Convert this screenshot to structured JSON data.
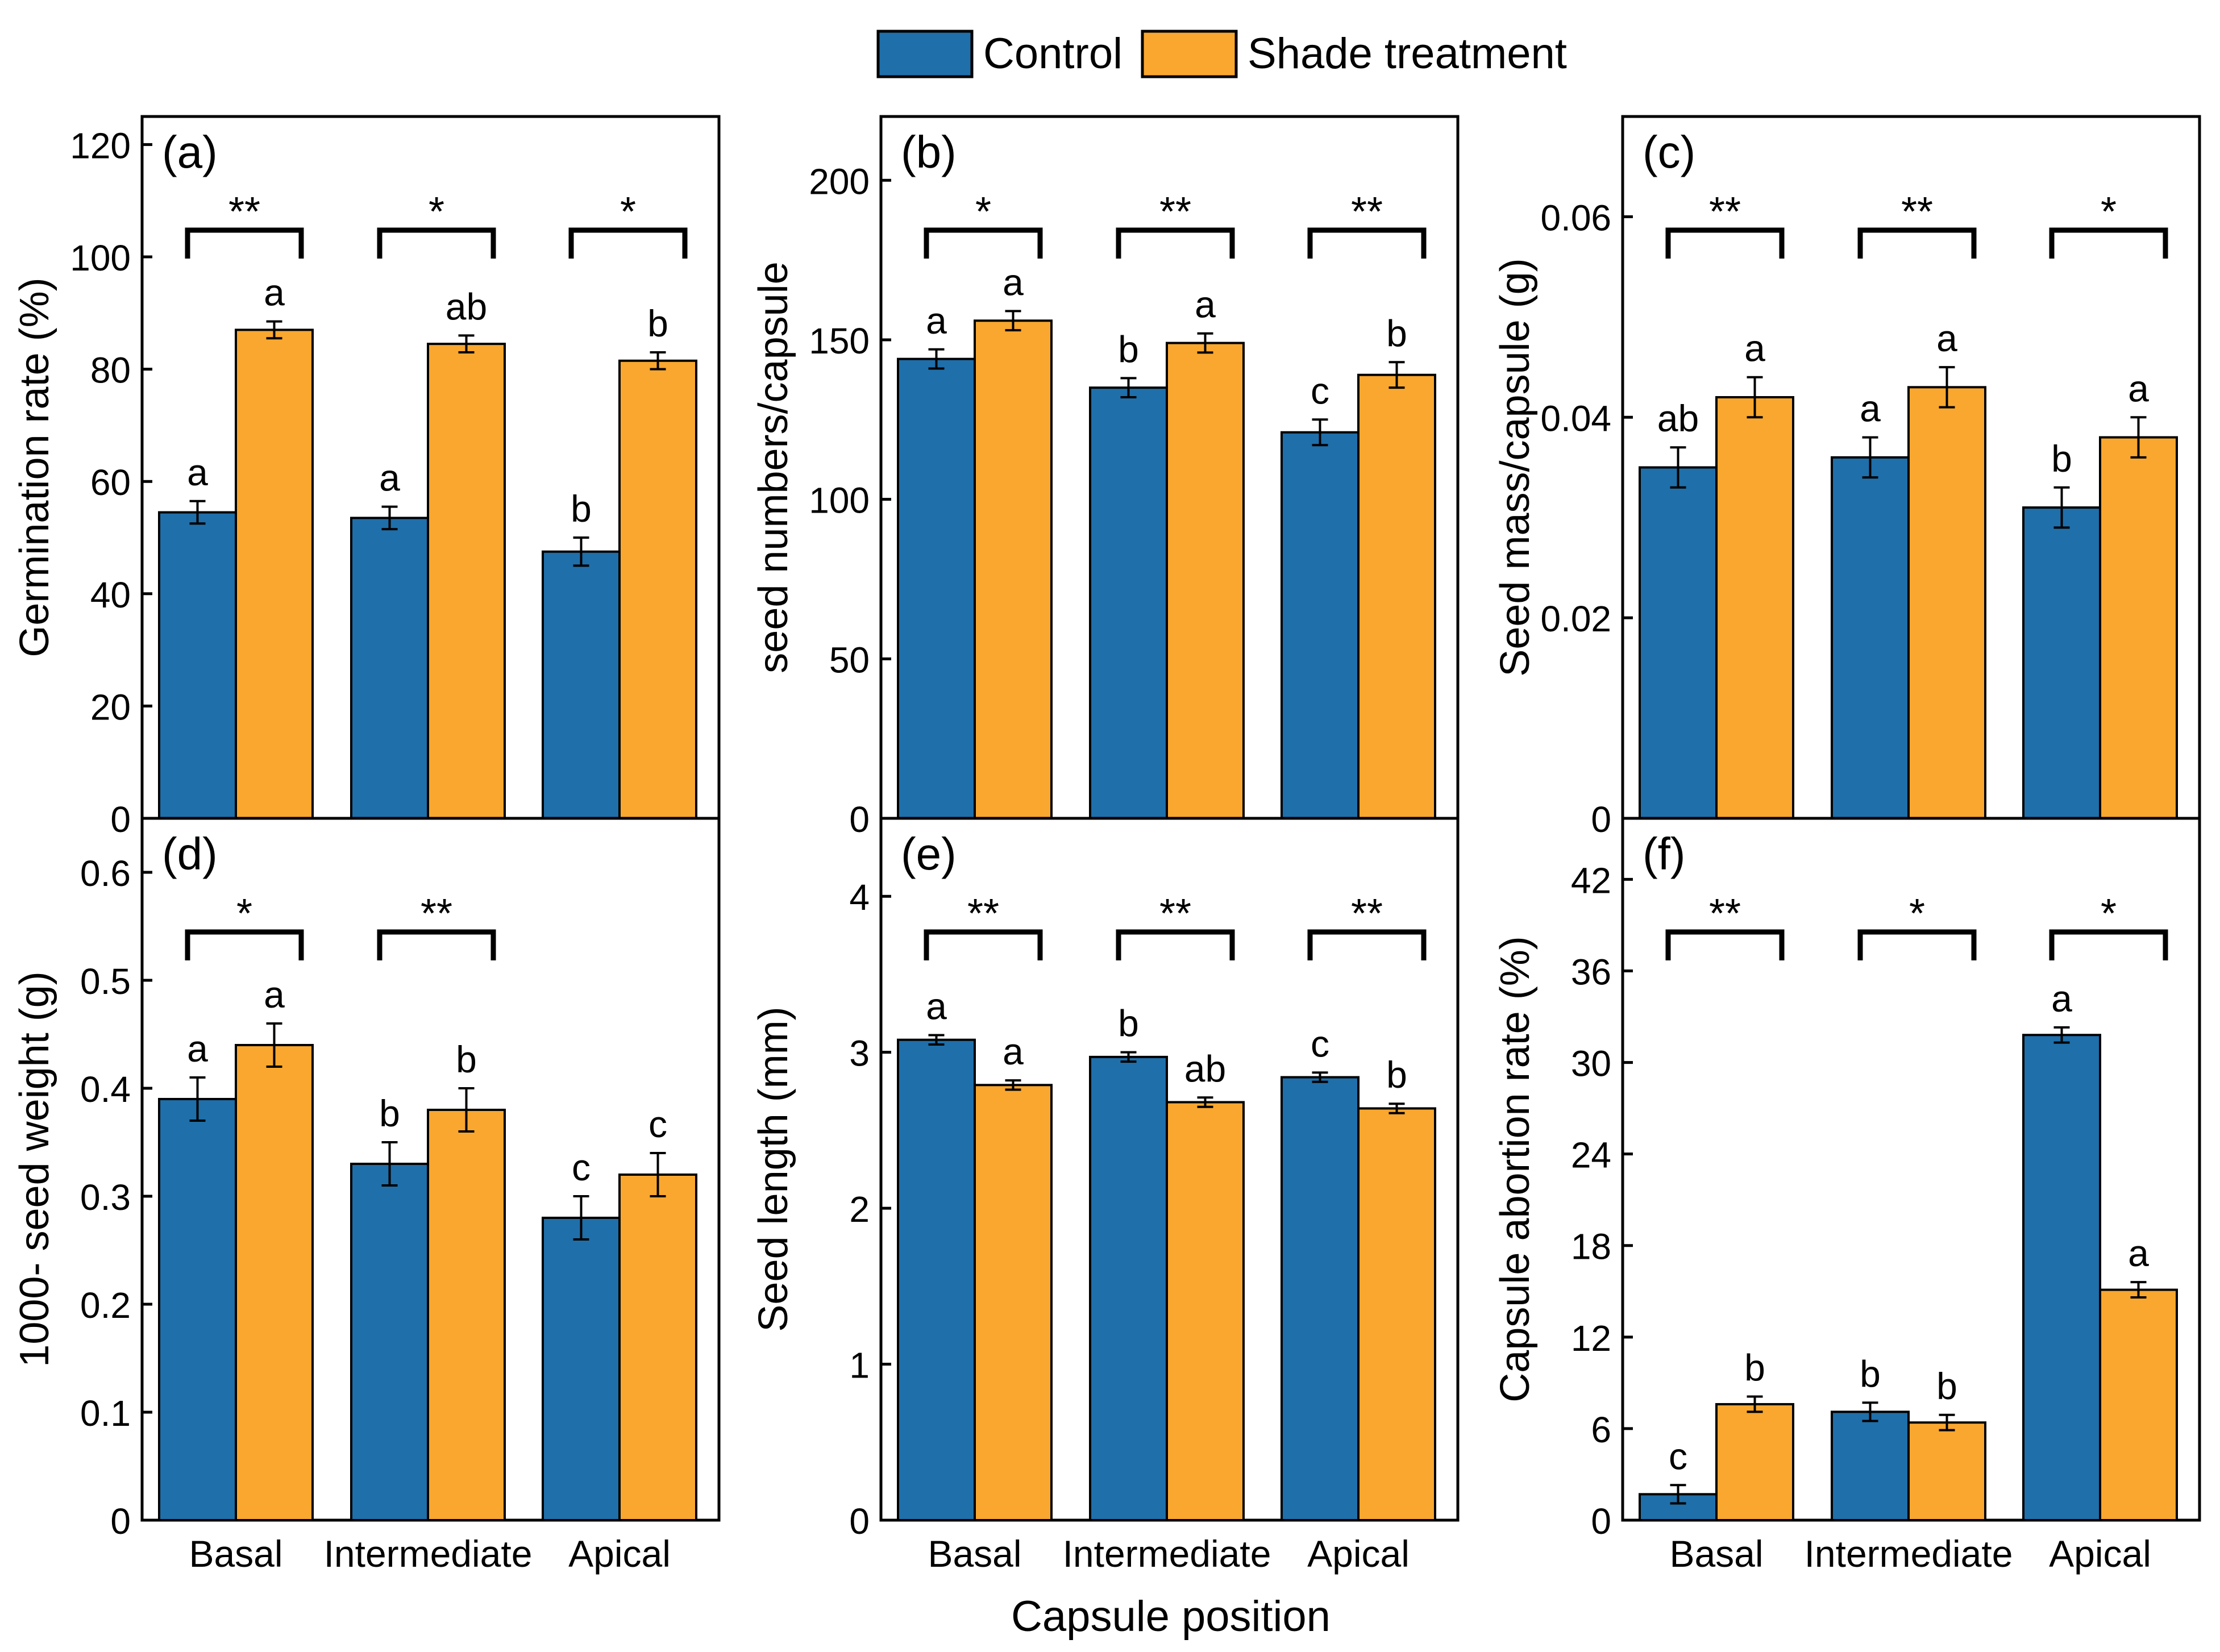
{
  "legend": {
    "entries": [
      {
        "name": "Control",
        "color": "#1f6faa"
      },
      {
        "name": "Shade treatment",
        "color": "#f9a72f"
      }
    ]
  },
  "xaxis_title": "Capsule position",
  "chart_data": [
    {
      "panel": "(a)",
      "type": "bar",
      "categories": [
        "Basal",
        "Intermediate",
        "Apical"
      ],
      "ylabel": "Germination rate (%)",
      "ylim": [
        0,
        125
      ],
      "yticks": [
        0,
        20,
        40,
        60,
        80,
        100,
        120
      ],
      "series": [
        {
          "name": "Control",
          "values": [
            54.5,
            53.5,
            47.5
          ],
          "errors": [
            2,
            2,
            2.5
          ],
          "letters": [
            "a",
            "a",
            "b"
          ]
        },
        {
          "name": "Shade treatment",
          "values": [
            87,
            84.5,
            81.5
          ],
          "errors": [
            1.5,
            1.5,
            1.5
          ],
          "letters": [
            "a",
            "ab",
            "b"
          ]
        }
      ],
      "significance": [
        "**",
        "*",
        "*"
      ]
    },
    {
      "panel": "(b)",
      "type": "bar",
      "categories": [
        "Basal",
        "Intermediate",
        "Apical"
      ],
      "ylabel": "seed numbers/capsule",
      "ylim": [
        0,
        220
      ],
      "yticks": [
        0,
        50,
        100,
        150,
        200
      ],
      "series": [
        {
          "name": "Control",
          "values": [
            144,
            135,
            121
          ],
          "errors": [
            3,
            3,
            4
          ],
          "letters": [
            "a",
            "b",
            "c"
          ]
        },
        {
          "name": "Shade treatment",
          "values": [
            156,
            149,
            139
          ],
          "errors": [
            3,
            3,
            4
          ],
          "letters": [
            "a",
            "a",
            "b"
          ]
        }
      ],
      "significance": [
        "*",
        "**",
        "**"
      ]
    },
    {
      "panel": "(c)",
      "type": "bar",
      "categories": [
        "Basal",
        "Intermediate",
        "Apical"
      ],
      "ylabel": "Seed mass/capsule (g)",
      "ylim": [
        0,
        0.07
      ],
      "yticks": [
        0,
        0.02,
        0.04,
        0.06
      ],
      "series": [
        {
          "name": "Control",
          "values": [
            0.035,
            0.036,
            0.031
          ],
          "errors": [
            0.002,
            0.002,
            0.002
          ],
          "letters": [
            "ab",
            "a",
            "b"
          ]
        },
        {
          "name": "Shade treatment",
          "values": [
            0.042,
            0.043,
            0.038
          ],
          "errors": [
            0.002,
            0.002,
            0.002
          ],
          "letters": [
            "a",
            "a",
            "a"
          ]
        }
      ],
      "significance": [
        "**",
        "**",
        "*"
      ]
    },
    {
      "panel": "(d)",
      "type": "bar",
      "categories": [
        "Basal",
        "Intermediate",
        "Apical"
      ],
      "ylabel": "1000- seed weight (g)",
      "ylim": [
        0,
        0.65
      ],
      "yticks": [
        0,
        0.1,
        0.2,
        0.3,
        0.4,
        0.5,
        0.6
      ],
      "series": [
        {
          "name": "Control",
          "values": [
            0.39,
            0.33,
            0.28
          ],
          "errors": [
            0.02,
            0.02,
            0.02
          ],
          "letters": [
            "a",
            "b",
            "c"
          ]
        },
        {
          "name": "Shade treatment",
          "values": [
            0.44,
            0.38,
            0.32
          ],
          "errors": [
            0.02,
            0.02,
            0.02
          ],
          "letters": [
            "a",
            "b",
            "c"
          ]
        }
      ],
      "significance": [
        "*",
        "**",
        ""
      ]
    },
    {
      "panel": "(e)",
      "type": "bar",
      "categories": [
        "Basal",
        "Intermediate",
        "Apical"
      ],
      "ylabel": "Seed length (mm)",
      "ylim": [
        0,
        4.5
      ],
      "yticks": [
        0,
        1,
        2,
        3,
        4
      ],
      "series": [
        {
          "name": "Control",
          "values": [
            3.08,
            2.97,
            2.84
          ],
          "errors": [
            0.03,
            0.03,
            0.03
          ],
          "letters": [
            "a",
            "b",
            "c"
          ]
        },
        {
          "name": "Shade treatment",
          "values": [
            2.79,
            2.68,
            2.64
          ],
          "errors": [
            0.03,
            0.03,
            0.03
          ],
          "letters": [
            "a",
            "ab",
            "b"
          ]
        }
      ],
      "significance": [
        "**",
        "**",
        "**"
      ]
    },
    {
      "panel": "(f)",
      "type": "bar",
      "categories": [
        "Basal",
        "Intermediate",
        "Apical"
      ],
      "ylabel": "Capsule abortion rate (%)",
      "ylim": [
        0,
        46
      ],
      "yticks": [
        0,
        6,
        12,
        18,
        24,
        30,
        36,
        42
      ],
      "series": [
        {
          "name": "Control",
          "values": [
            1.7,
            7.1,
            31.8
          ],
          "errors": [
            0.6,
            0.6,
            0.5
          ],
          "letters": [
            "c",
            "b",
            "a"
          ]
        },
        {
          "name": "Shade treatment",
          "values": [
            7.6,
            6.4,
            15.1
          ],
          "errors": [
            0.5,
            0.5,
            0.5
          ],
          "letters": [
            "b",
            "b",
            "a"
          ]
        }
      ],
      "significance": [
        "**",
        "*",
        "*"
      ]
    }
  ]
}
